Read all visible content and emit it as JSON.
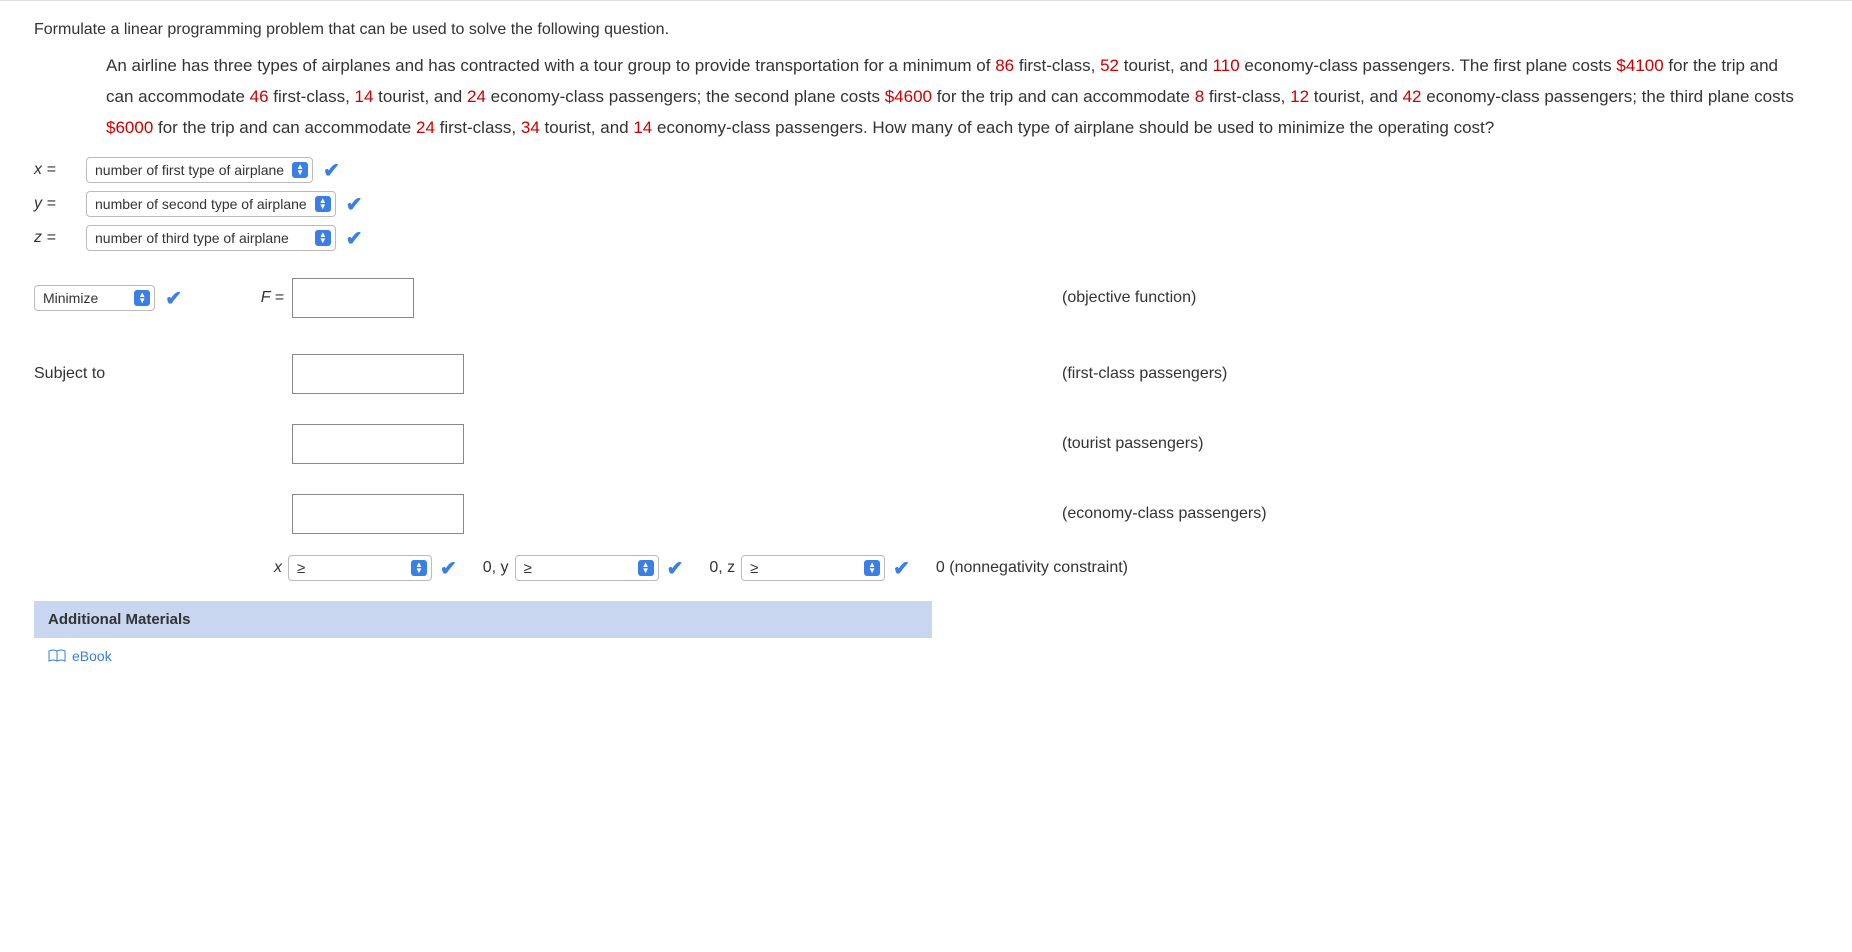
{
  "prompt": "Formulate a linear programming problem that can be used to solve the following question.",
  "passage": {
    "parts": [
      {
        "t": "An airline has three types of airplanes and has contracted with a tour group to provide transportation for a minimum of "
      },
      {
        "t": "86",
        "r": true
      },
      {
        "t": " first-class, "
      },
      {
        "t": "52",
        "r": true
      },
      {
        "t": " tourist, and "
      },
      {
        "t": "110",
        "r": true
      },
      {
        "t": " economy-class passengers. The first plane costs "
      },
      {
        "t": "$4100",
        "r": true
      },
      {
        "t": " for the trip and can accommodate "
      },
      {
        "t": "46",
        "r": true
      },
      {
        "t": " first-class, "
      },
      {
        "t": "14",
        "r": true
      },
      {
        "t": " tourist, and "
      },
      {
        "t": "24",
        "r": true
      },
      {
        "t": " economy-class passengers; the second plane costs "
      },
      {
        "t": "$4600",
        "r": true
      },
      {
        "t": " for the trip and can accommodate "
      },
      {
        "t": "8",
        "r": true
      },
      {
        "t": " first-class, "
      },
      {
        "t": "12",
        "r": true
      },
      {
        "t": " tourist, and "
      },
      {
        "t": "42",
        "r": true
      },
      {
        "t": " economy-class passengers; the third plane costs "
      },
      {
        "t": "$6000",
        "r": true
      },
      {
        "t": " for the trip and can accommodate "
      },
      {
        "t": "24",
        "r": true
      },
      {
        "t": " first-class, "
      },
      {
        "t": "34",
        "r": true
      },
      {
        "t": " tourist, and "
      },
      {
        "t": "14",
        "r": true
      },
      {
        "t": " economy-class passengers. How many of each type of airplane should be used to minimize the operating cost?"
      }
    ]
  },
  "vars": {
    "x_lhs": "x =",
    "x_sel": "number of first type of airplane",
    "y_lhs": "y =",
    "y_sel": "number of second type of airplane",
    "z_lhs": "z =",
    "z_sel": "number of third type of airplane"
  },
  "objective": {
    "select": "Minimize",
    "eq": "F =",
    "label": "(objective function)"
  },
  "subject_to": "Subject to",
  "constraints": {
    "c1": "(first-class passengers)",
    "c2": "(tourist passengers)",
    "c3": "(economy-class passengers)"
  },
  "nonneg": {
    "x": "x",
    "y": "0, y",
    "z": "0, z",
    "rel": "≥",
    "tail": "0 (nonnegativity constraint)"
  },
  "additional": "Additional Materials",
  "ebook": "eBook"
}
